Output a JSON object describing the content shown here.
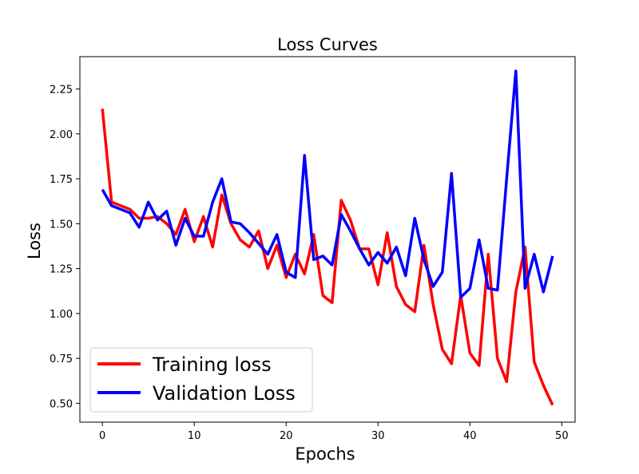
{
  "chart_data": {
    "type": "line",
    "title": "Loss Curves",
    "xlabel": "Epochs",
    "ylabel": "Loss",
    "xlim": [
      -2.45,
      51.45
    ],
    "ylim": [
      0.395,
      2.43
    ],
    "xticks": [
      0,
      10,
      20,
      30,
      40,
      50
    ],
    "yticks": [
      0.5,
      0.75,
      1.0,
      1.25,
      1.5,
      1.75,
      2.0,
      2.25
    ],
    "ytick_labels": [
      "0.50",
      "0.75",
      "1.00",
      "1.25",
      "1.50",
      "1.75",
      "2.00",
      "2.25"
    ],
    "legend_position": "lower-left",
    "grid": false,
    "x": [
      0,
      1,
      2,
      3,
      4,
      5,
      6,
      7,
      8,
      9,
      10,
      11,
      12,
      13,
      14,
      15,
      16,
      17,
      18,
      19,
      20,
      21,
      22,
      23,
      24,
      25,
      26,
      27,
      28,
      29,
      30,
      31,
      32,
      33,
      34,
      35,
      36,
      37,
      38,
      39,
      40,
      41,
      42,
      43,
      44,
      45,
      46,
      47,
      48,
      49
    ],
    "series": [
      {
        "name": "Training loss",
        "color": "#ff0000",
        "values": [
          2.14,
          1.62,
          1.6,
          1.58,
          1.53,
          1.53,
          1.54,
          1.5,
          1.44,
          1.58,
          1.4,
          1.54,
          1.37,
          1.66,
          1.5,
          1.41,
          1.37,
          1.46,
          1.25,
          1.38,
          1.2,
          1.33,
          1.22,
          1.44,
          1.1,
          1.06,
          1.63,
          1.52,
          1.36,
          1.36,
          1.16,
          1.45,
          1.15,
          1.05,
          1.01,
          1.38,
          1.05,
          0.8,
          0.72,
          1.1,
          0.78,
          0.71,
          1.33,
          0.75,
          0.62,
          1.12,
          1.37,
          0.73,
          0.6,
          0.49
        ]
      },
      {
        "name": "Validation Loss",
        "color": "#0000ff",
        "values": [
          1.69,
          1.6,
          1.58,
          1.56,
          1.48,
          1.62,
          1.52,
          1.57,
          1.38,
          1.53,
          1.43,
          1.43,
          1.62,
          1.75,
          1.51,
          1.5,
          1.45,
          1.39,
          1.33,
          1.44,
          1.23,
          1.2,
          1.88,
          1.3,
          1.32,
          1.27,
          1.55,
          1.46,
          1.36,
          1.27,
          1.34,
          1.28,
          1.37,
          1.21,
          1.53,
          1.3,
          1.15,
          1.23,
          1.78,
          1.09,
          1.14,
          1.41,
          1.14,
          1.13,
          1.75,
          2.35,
          1.14,
          1.33,
          1.12,
          1.32
        ]
      }
    ]
  }
}
